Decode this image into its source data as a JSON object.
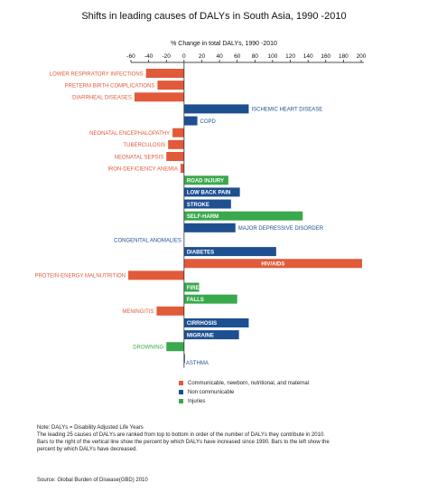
{
  "chart_data": {
    "type": "bar",
    "orientation": "horizontal",
    "title": "Shifts in leading causes of DALYs in South Asia, 1990 -2010",
    "xlabel": "% Change in total DALYs, 1990 -2010",
    "xlim": [
      -60,
      200
    ],
    "xticks": [
      "-60",
      "-40",
      "-20",
      "0",
      "20",
      "40",
      "60",
      "80",
      "100",
      "120",
      "140",
      "160",
      "180",
      "200"
    ],
    "grid": false,
    "legend_position": "bottom",
    "categories": [
      {
        "label": "LOWER RESPIRATORY INFECTIONS",
        "value": -43,
        "group": "communicable"
      },
      {
        "label": "PRETERM BIRTH COMPLICATIONS",
        "value": -30,
        "group": "communicable"
      },
      {
        "label": "DIARRHEAL DISEASES",
        "value": -56,
        "group": "communicable"
      },
      {
        "label": "ISCHEMIC HEART DISEASE",
        "value": 73,
        "group": "non_communicable"
      },
      {
        "label": "COPD",
        "value": 15,
        "group": "non_communicable"
      },
      {
        "label": "NEONATAL ENCEPHALOPATHY",
        "value": -13,
        "group": "communicable"
      },
      {
        "label": "TUBERCULOSIS",
        "value": -18,
        "group": "communicable"
      },
      {
        "label": "NEONATAL SEPSIS",
        "value": -20,
        "group": "communicable"
      },
      {
        "label": "IRON-DEFICIENCY ANEMIA",
        "value": -4,
        "group": "communicable"
      },
      {
        "label": "ROAD INJURY",
        "value": 50,
        "group": "injuries"
      },
      {
        "label": "LOW BACK PAIN",
        "value": 63,
        "group": "non_communicable"
      },
      {
        "label": "STROKE",
        "value": 53,
        "group": "non_communicable"
      },
      {
        "label": "SELF-HARM",
        "value": 134,
        "group": "injuries"
      },
      {
        "label": "MAJOR DEPRESSIVE DISORDER",
        "value": 58,
        "group": "non_communicable"
      },
      {
        "label": "CONGENITAL ANOMALIES",
        "value": 0,
        "group": "non_communicable"
      },
      {
        "label": "DIABETES",
        "value": 104,
        "group": "non_communicable"
      },
      {
        "label": "HIV/AIDS",
        "value": 201,
        "group": "communicable"
      },
      {
        "label": "PROTEIN-ENERGY MALNUTRITION",
        "value": -63,
        "group": "communicable"
      },
      {
        "label": "FIRE",
        "value": 17,
        "group": "injuries"
      },
      {
        "label": "FALLS",
        "value": 60,
        "group": "injuries"
      },
      {
        "label": "MENINGITIS",
        "value": -31,
        "group": "communicable"
      },
      {
        "label": "CIRRHOSIS",
        "value": 73,
        "group": "non_communicable"
      },
      {
        "label": "MIGRAINE",
        "value": 62,
        "group": "non_communicable"
      },
      {
        "label": "DROWNING",
        "value": -20,
        "group": "injuries"
      },
      {
        "label": "ASTHMA",
        "value": 1,
        "group": "non_communicable"
      }
    ],
    "series": [
      {
        "key": "communicable",
        "name": "Communicable, newborn, nutritional, and maternal",
        "color": "#e15a3a",
        "label_color": "#e15a3a"
      },
      {
        "key": "non_communicable",
        "name": "Non communicable",
        "color": "#1d4f91",
        "label_color": "#1d4f91"
      },
      {
        "key": "injuries",
        "name": "Injuries",
        "color": "#3aa84c",
        "label_color": "#3aa84c"
      }
    ],
    "inner_labels": [
      "ROAD INJURY",
      "LOW BACK PAIN",
      "STROKE",
      "SELF-HARM",
      "DIABETES",
      "HIV/AIDS",
      "FIRE",
      "FALLS",
      "CIRRHOSIS",
      "MIGRAINE"
    ]
  },
  "notes": {
    "line1": "Note: DALYs = Disability Adjusted Life Years",
    "line2": "The leading 25 causes of DALYs are ranked from top to bottom in order of the number of DALYs they contribute in 2010. Bars to the right of the vertical line show the percent by which DALYs have increased since 1990. Bars to the left show the percent by which DALYs have decreased."
  },
  "source": "Source: Global Burden of Disease(GBD) 2010"
}
